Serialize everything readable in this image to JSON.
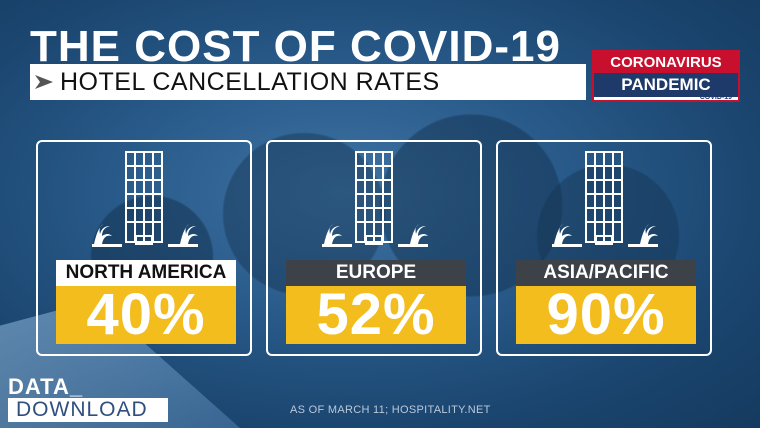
{
  "header": {
    "title": "THE COST OF COVID-19",
    "subtitle": "HOTEL CANCELLATION RATES"
  },
  "brand": {
    "line1": "CORONAVIRUS",
    "line2": "PANDEMIC",
    "line3": "COVID-19",
    "accent_color": "#c8102e",
    "navy_color": "#1e3a6b"
  },
  "cards": [
    {
      "region": "NORTH AMERICA",
      "rate": "40%",
      "icon": "hotel-icon"
    },
    {
      "region": "EUROPE",
      "rate": "52%",
      "icon": "hotel-icon"
    },
    {
      "region": "ASIA/PACIFIC",
      "rate": "90%",
      "icon": "hotel-icon"
    }
  ],
  "footer": {
    "data_label": "DATA_",
    "download_label": "DOWNLOAD",
    "source": "AS OF MARCH 11; HOSPITALITY.NET"
  },
  "colors": {
    "rate_bg": "#f2bd1d",
    "label_dark_bg": "#3d4148"
  }
}
